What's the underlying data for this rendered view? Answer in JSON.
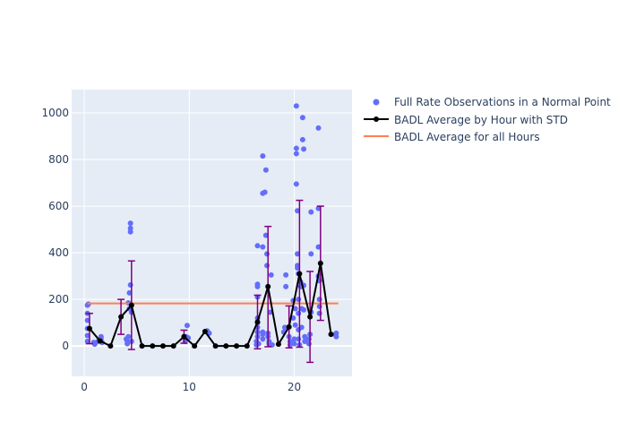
{
  "chart_data": {
    "type": "scatter",
    "title": "",
    "xlabel": "",
    "ylabel": "",
    "xlim": [
      -1.2,
      25.5
    ],
    "ylim": [
      -130,
      1100
    ],
    "x_ticks": [
      0,
      10,
      20
    ],
    "y_ticks": [
      0,
      200,
      400,
      600,
      800,
      1000
    ],
    "x_tick_labels": [
      "0",
      "10",
      "20"
    ],
    "y_tick_labels": [
      "0",
      "200",
      "400",
      "600",
      "800",
      "1000"
    ],
    "grid": true,
    "legend_position": "right",
    "colors": {
      "background": "#e5ecf6",
      "grid": "#ffffff",
      "observations": "#636efa",
      "average": "#000000",
      "error_bars": "#800080",
      "overall": "#ff7f50"
    },
    "series": [
      {
        "name": "Full Rate Observations in a Normal Point",
        "kind": "scatter",
        "points": [
          [
            0.3,
            175
          ],
          [
            0.3,
            140
          ],
          [
            0.3,
            110
          ],
          [
            0.3,
            75
          ],
          [
            0.3,
            45
          ],
          [
            0.3,
            20
          ],
          [
            0.4,
            180
          ],
          [
            0.9,
            15
          ],
          [
            1.0,
            8
          ],
          [
            1.3,
            20
          ],
          [
            1.6,
            30
          ],
          [
            1.6,
            40
          ],
          [
            1.7,
            15
          ],
          [
            4.0,
            30
          ],
          [
            4.1,
            20
          ],
          [
            4.1,
            10
          ],
          [
            4.2,
            40
          ],
          [
            4.2,
            185
          ],
          [
            4.3,
            160
          ],
          [
            4.3,
            228
          ],
          [
            4.4,
            262
          ],
          [
            4.4,
            490
          ],
          [
            4.4,
            505
          ],
          [
            4.4,
            527
          ],
          [
            4.5,
            145
          ],
          [
            4.5,
            20
          ],
          [
            9.6,
            20
          ],
          [
            9.7,
            40
          ],
          [
            9.8,
            88
          ],
          [
            9.9,
            35
          ],
          [
            11.7,
            65
          ],
          [
            11.9,
            55
          ],
          [
            16.4,
            5
          ],
          [
            16.4,
            20
          ],
          [
            16.5,
            40
          ],
          [
            16.5,
            60
          ],
          [
            16.5,
            80
          ],
          [
            16.5,
            100
          ],
          [
            16.5,
            120
          ],
          [
            16.5,
            210
          ],
          [
            16.5,
            255
          ],
          [
            16.5,
            265
          ],
          [
            16.5,
            430
          ],
          [
            16.6,
            10
          ],
          [
            17.0,
            60
          ],
          [
            17.0,
            50
          ],
          [
            17.0,
            30
          ],
          [
            17.0,
            425
          ],
          [
            17.0,
            655
          ],
          [
            17.0,
            815
          ],
          [
            17.2,
            660
          ],
          [
            17.3,
            475
          ],
          [
            17.3,
            755
          ],
          [
            17.4,
            395
          ],
          [
            17.4,
            345
          ],
          [
            17.5,
            55
          ],
          [
            17.5,
            40
          ],
          [
            17.6,
            20
          ],
          [
            17.6,
            10
          ],
          [
            17.7,
            145
          ],
          [
            17.8,
            305
          ],
          [
            17.9,
            5
          ],
          [
            19.0,
            60
          ],
          [
            19.1,
            80
          ],
          [
            19.2,
            255
          ],
          [
            19.2,
            305
          ],
          [
            19.5,
            40
          ],
          [
            19.6,
            20
          ],
          [
            19.6,
            5
          ],
          [
            19.9,
            120
          ],
          [
            19.9,
            195
          ],
          [
            20.0,
            30
          ],
          [
            20.0,
            10
          ],
          [
            20.1,
            160
          ],
          [
            20.1,
            90
          ],
          [
            20.2,
            1030
          ],
          [
            20.2,
            848
          ],
          [
            20.2,
            825
          ],
          [
            20.2,
            695
          ],
          [
            20.3,
            335
          ],
          [
            20.3,
            345
          ],
          [
            20.3,
            395
          ],
          [
            20.3,
            580
          ],
          [
            20.4,
            310
          ],
          [
            20.4,
            200
          ],
          [
            20.4,
            140
          ],
          [
            20.4,
            70
          ],
          [
            20.4,
            30
          ],
          [
            20.5,
            5
          ],
          [
            20.6,
            275
          ],
          [
            20.6,
            255
          ],
          [
            20.7,
            160
          ],
          [
            20.7,
            80
          ],
          [
            20.8,
            980
          ],
          [
            20.8,
            885
          ],
          [
            20.9,
            845
          ],
          [
            20.9,
            260
          ],
          [
            20.9,
            155
          ],
          [
            21.0,
            40
          ],
          [
            21.0,
            20
          ],
          [
            21.4,
            30
          ],
          [
            21.4,
            10
          ],
          [
            21.5,
            50
          ],
          [
            21.6,
            575
          ],
          [
            21.6,
            395
          ],
          [
            21.6,
            145
          ],
          [
            22.3,
            935
          ],
          [
            22.3,
            590
          ],
          [
            22.3,
            425
          ],
          [
            22.3,
            300
          ],
          [
            22.4,
            280
          ],
          [
            22.4,
            200
          ],
          [
            22.4,
            170
          ],
          [
            22.4,
            140
          ],
          [
            23.9,
            50
          ],
          [
            24.0,
            40
          ],
          [
            24.0,
            55
          ]
        ]
      },
      {
        "name": "BADL Average by Hour with STD",
        "kind": "line",
        "x": [
          0.5,
          1.5,
          2.5,
          3.5,
          4.5,
          5.5,
          6.5,
          7.5,
          8.5,
          9.5,
          10.5,
          11.5,
          12.5,
          13.5,
          14.5,
          15.5,
          16.5,
          17.5,
          18.5,
          19.5,
          20.5,
          21.5,
          22.5,
          23.5
        ],
        "y": [
          75,
          22,
          0,
          125,
          175,
          0,
          0,
          0,
          0,
          40,
          0,
          62,
          0,
          0,
          0,
          0,
          103,
          255,
          8,
          82,
          310,
          125,
          355,
          50
        ],
        "std": [
          65,
          0,
          0,
          75,
          190,
          0,
          0,
          0,
          0,
          28,
          0,
          0,
          0,
          0,
          0,
          0,
          115,
          258,
          0,
          90,
          315,
          195,
          245,
          0
        ]
      },
      {
        "name": "BADL Average for all Hours",
        "kind": "hline",
        "y": 183,
        "x_range": [
          0.3,
          24.2
        ]
      }
    ]
  }
}
